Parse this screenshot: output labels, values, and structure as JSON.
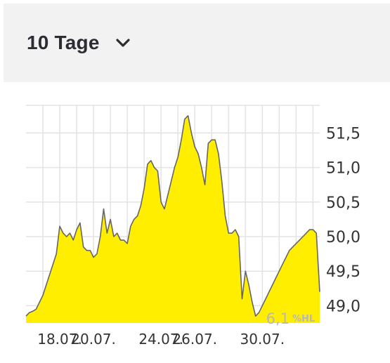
{
  "selector": {
    "period_label": "10 Tage",
    "chevron_icon": "chevron-down-icon"
  },
  "chart_data": {
    "type": "area",
    "fill_color": "#ffee00",
    "line_color": "#666666",
    "grid": true,
    "y_axis_position": "right",
    "ylim": [
      48.75,
      51.9
    ],
    "y_ticks": [
      "51,5",
      "51,0",
      "50,5",
      "50,0",
      "49,5",
      "49,0"
    ],
    "y_tick_values": [
      51.5,
      51.0,
      50.5,
      50.0,
      49.5,
      49.0
    ],
    "x_ticks": [
      "18.07.",
      "20.07.",
      "24.07.",
      "26.07.",
      "30.07."
    ],
    "x_tick_positions": [
      1,
      2,
      4,
      5,
      7
    ],
    "x_range": [
      0,
      8.7
    ],
    "annotation": {
      "value": "6,1",
      "unit": "%HL"
    },
    "x": [
      0.0,
      0.1,
      0.2,
      0.3,
      0.4,
      0.5,
      0.6,
      0.7,
      0.8,
      0.9,
      1.0,
      1.1,
      1.2,
      1.3,
      1.4,
      1.5,
      1.6,
      1.7,
      1.8,
      1.9,
      2.0,
      2.1,
      2.2,
      2.3,
      2.4,
      2.5,
      2.6,
      2.7,
      2.8,
      2.9,
      3.0,
      3.1,
      3.2,
      3.3,
      3.4,
      3.5,
      3.6,
      3.7,
      3.8,
      3.9,
      4.0,
      4.1,
      4.2,
      4.3,
      4.4,
      4.5,
      4.6,
      4.7,
      4.8,
      4.9,
      5.0,
      5.1,
      5.2,
      5.3,
      5.4,
      5.5,
      5.6,
      5.7,
      5.8,
      5.9,
      6.0,
      6.1,
      6.2,
      6.3,
      6.4,
      6.5,
      6.6,
      6.7,
      6.8,
      6.9,
      7.0,
      7.1,
      7.2,
      7.3,
      7.4,
      7.5,
      7.6,
      7.7,
      7.8,
      7.9,
      8.0,
      8.1,
      8.2,
      8.3,
      8.4,
      8.5,
      8.6,
      8.7
    ],
    "values": [
      48.85,
      48.9,
      48.92,
      48.95,
      49.05,
      49.15,
      49.3,
      49.45,
      49.6,
      49.75,
      50.15,
      50.05,
      50.0,
      50.05,
      49.95,
      50.1,
      50.2,
      49.85,
      49.8,
      49.8,
      49.7,
      49.75,
      50.0,
      50.4,
      50.05,
      50.25,
      50.0,
      50.05,
      49.95,
      49.95,
      49.9,
      50.15,
      50.25,
      50.3,
      50.45,
      50.7,
      51.05,
      51.1,
      51.0,
      50.95,
      50.5,
      50.4,
      50.6,
      50.8,
      51.0,
      51.15,
      51.4,
      51.7,
      51.75,
      51.5,
      51.3,
      51.2,
      51.0,
      50.75,
      51.35,
      51.4,
      51.4,
      51.2,
      50.8,
      50.3,
      50.05,
      50.05,
      50.1,
      50.0,
      49.1,
      49.5,
      49.3,
      49.05,
      48.85,
      48.9,
      49.0,
      49.1,
      49.2,
      49.3,
      49.4,
      49.5,
      49.6,
      49.7,
      49.8,
      49.85,
      49.9,
      49.95,
      50.0,
      50.05,
      50.1,
      50.1,
      50.05,
      49.2
    ]
  }
}
